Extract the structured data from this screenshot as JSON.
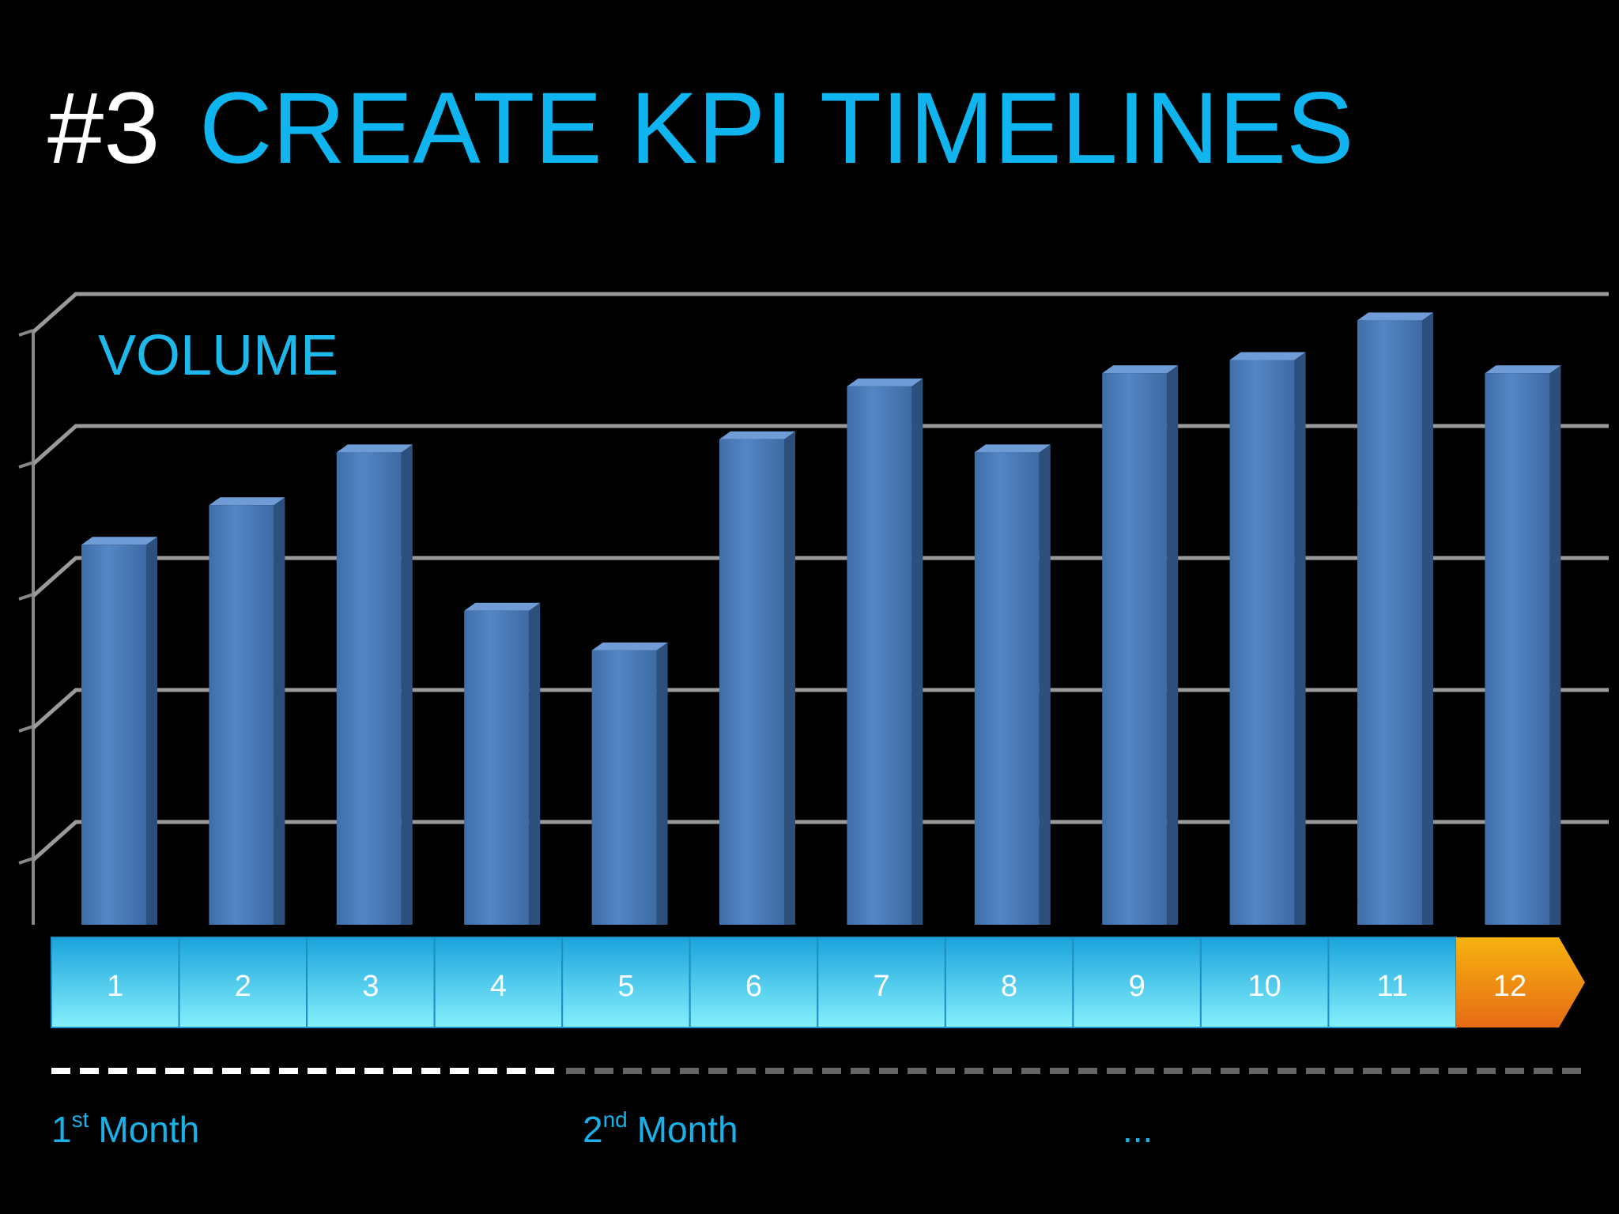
{
  "header": {
    "number": "#3",
    "title": "CREATE KPI TIMELINES"
  },
  "chart_data": {
    "type": "bar",
    "title": "VOLUME",
    "categories": [
      "1",
      "2",
      "3",
      "4",
      "5",
      "6",
      "7",
      "8",
      "9",
      "10",
      "11",
      "12"
    ],
    "values": [
      3.1,
      3.4,
      3.8,
      2.6,
      2.3,
      3.9,
      4.3,
      3.8,
      4.4,
      4.5,
      4.8,
      4.4
    ],
    "color": "#4f81bd",
    "category_colors": [
      "#3cc3ee",
      "#3cc3ee",
      "#3cc3ee",
      "#3cc3ee",
      "#3cc3ee",
      "#3cc3ee",
      "#3cc3ee",
      "#3cc3ee",
      "#3cc3ee",
      "#3cc3ee",
      "#3cc3ee",
      "#f39c12"
    ],
    "ylim": [
      0,
      5
    ],
    "yticks": [
      1,
      2,
      3,
      4,
      5
    ],
    "grid": true
  },
  "periods": [
    {
      "number": "1",
      "suffix": "st",
      "label": "Month"
    },
    {
      "number": "2",
      "suffix": "nd",
      "label": "Month"
    },
    {
      "label": "..."
    }
  ]
}
